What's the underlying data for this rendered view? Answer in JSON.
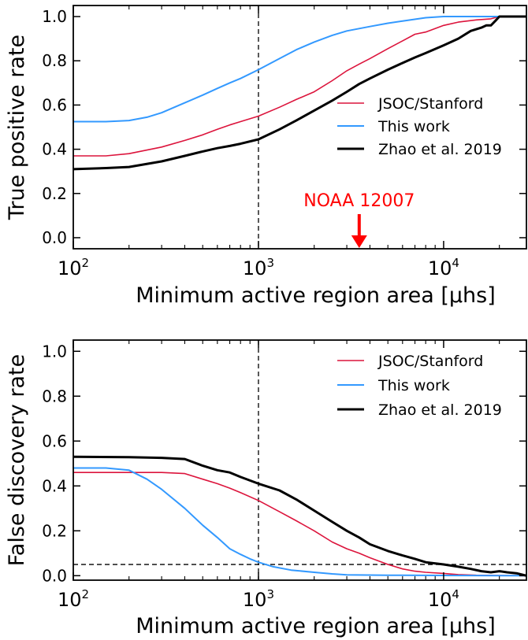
{
  "chart_data": [
    {
      "type": "line",
      "panel": "top",
      "xlabel": "Minimum active region area [μhs]",
      "ylabel": "True positive rate",
      "xscale": "log",
      "xlim": [
        100,
        28000
      ],
      "ylim": [
        -0.05,
        1.05
      ],
      "xticks": [
        100,
        1000,
        10000
      ],
      "xtick_labels": [
        {
          "base": "10",
          "exp": "2"
        },
        {
          "base": "10",
          "exp": "3"
        },
        {
          "base": "10",
          "exp": "4"
        }
      ],
      "yticks": [
        0.0,
        0.2,
        0.4,
        0.6,
        0.8,
        1.0
      ],
      "ytick_labels": [
        "0.0",
        "0.2",
        "0.4",
        "0.6",
        "0.8",
        "1.0"
      ],
      "grid": false,
      "legend_position": "right",
      "vline_x": 1000,
      "annotation": {
        "text": "NOAA 12007",
        "x": 3500,
        "color": "#ff0000"
      },
      "series": [
        {
          "name": "JSOC/Stanford",
          "color": "#dc143c",
          "linewidth": 1.6,
          "points": [
            [
              100,
              0.37
            ],
            [
              150,
              0.37
            ],
            [
              200,
              0.38
            ],
            [
              300,
              0.41
            ],
            [
              400,
              0.44
            ],
            [
              500,
              0.465
            ],
            [
              600,
              0.49
            ],
            [
              700,
              0.51
            ],
            [
              800,
              0.525
            ],
            [
              1000,
              0.55
            ],
            [
              1300,
              0.59
            ],
            [
              1600,
              0.625
            ],
            [
              2000,
              0.66
            ],
            [
              2500,
              0.71
            ],
            [
              3000,
              0.755
            ],
            [
              3500,
              0.785
            ],
            [
              4000,
              0.81
            ],
            [
              5000,
              0.855
            ],
            [
              6000,
              0.89
            ],
            [
              7000,
              0.92
            ],
            [
              8000,
              0.93
            ],
            [
              10000,
              0.96
            ],
            [
              12000,
              0.975
            ],
            [
              15000,
              0.985
            ],
            [
              18000,
              0.99
            ],
            [
              20000,
              1.0
            ],
            [
              28000,
              1.0
            ]
          ]
        },
        {
          "name": "This work",
          "color": "#3399ff",
          "linewidth": 2.0,
          "points": [
            [
              100,
              0.525
            ],
            [
              150,
              0.525
            ],
            [
              200,
              0.53
            ],
            [
              250,
              0.545
            ],
            [
              300,
              0.565
            ],
            [
              400,
              0.61
            ],
            [
              500,
              0.645
            ],
            [
              600,
              0.675
            ],
            [
              700,
              0.7
            ],
            [
              800,
              0.72
            ],
            [
              1000,
              0.76
            ],
            [
              1300,
              0.81
            ],
            [
              1600,
              0.85
            ],
            [
              2000,
              0.885
            ],
            [
              2500,
              0.915
            ],
            [
              3000,
              0.935
            ],
            [
              4000,
              0.955
            ],
            [
              5000,
              0.97
            ],
            [
              6000,
              0.98
            ],
            [
              8000,
              0.995
            ],
            [
              10000,
              1.0
            ],
            [
              28000,
              1.0
            ]
          ]
        },
        {
          "name": "Zhao et al. 2019",
          "color": "#000000",
          "linewidth": 3.0,
          "points": [
            [
              100,
              0.31
            ],
            [
              150,
              0.315
            ],
            [
              200,
              0.32
            ],
            [
              300,
              0.345
            ],
            [
              400,
              0.37
            ],
            [
              500,
              0.39
            ],
            [
              600,
              0.405
            ],
            [
              700,
              0.415
            ],
            [
              800,
              0.425
            ],
            [
              1000,
              0.445
            ],
            [
              1300,
              0.49
            ],
            [
              1600,
              0.53
            ],
            [
              2000,
              0.575
            ],
            [
              2500,
              0.62
            ],
            [
              3000,
              0.66
            ],
            [
              3500,
              0.695
            ],
            [
              4000,
              0.72
            ],
            [
              5000,
              0.76
            ],
            [
              6000,
              0.79
            ],
            [
              7000,
              0.815
            ],
            [
              8000,
              0.835
            ],
            [
              10000,
              0.87
            ],
            [
              12000,
              0.9
            ],
            [
              14000,
              0.935
            ],
            [
              16000,
              0.95
            ],
            [
              17000,
              0.96
            ],
            [
              18000,
              0.96
            ],
            [
              19000,
              0.98
            ],
            [
              20000,
              1.0
            ],
            [
              28000,
              1.0
            ]
          ]
        }
      ]
    },
    {
      "type": "line",
      "panel": "bottom",
      "xlabel": "Minimum active region area [μhs]",
      "ylabel": "False discovery rate",
      "xscale": "log",
      "xlim": [
        100,
        28000
      ],
      "ylim": [
        -0.02,
        1.05
      ],
      "xticks": [
        100,
        1000,
        10000
      ],
      "xtick_labels": [
        {
          "base": "10",
          "exp": "2"
        },
        {
          "base": "10",
          "exp": "3"
        },
        {
          "base": "10",
          "exp": "4"
        }
      ],
      "yticks": [
        0.0,
        0.2,
        0.4,
        0.6,
        0.8,
        1.0
      ],
      "ytick_labels": [
        "0.0",
        "0.2",
        "0.4",
        "0.6",
        "0.8",
        "1.0"
      ],
      "grid": false,
      "legend_position": "top-right",
      "vline_x": 1000,
      "hline_y": 0.05,
      "series": [
        {
          "name": "JSOC/Stanford",
          "color": "#dc143c",
          "linewidth": 1.6,
          "points": [
            [
              100,
              0.46
            ],
            [
              200,
              0.46
            ],
            [
              300,
              0.46
            ],
            [
              400,
              0.455
            ],
            [
              500,
              0.43
            ],
            [
              600,
              0.41
            ],
            [
              700,
              0.39
            ],
            [
              800,
              0.37
            ],
            [
              1000,
              0.335
            ],
            [
              1300,
              0.285
            ],
            [
              1600,
              0.245
            ],
            [
              2000,
              0.2
            ],
            [
              2500,
              0.15
            ],
            [
              3000,
              0.12
            ],
            [
              3500,
              0.1
            ],
            [
              4000,
              0.08
            ],
            [
              5000,
              0.05
            ],
            [
              6000,
              0.03
            ],
            [
              7000,
              0.02
            ],
            [
              8000,
              0.015
            ],
            [
              10000,
              0.01
            ],
            [
              12000,
              0.005
            ],
            [
              15000,
              0.002
            ],
            [
              28000,
              0.0
            ]
          ]
        },
        {
          "name": "This work",
          "color": "#3399ff",
          "linewidth": 2.0,
          "points": [
            [
              100,
              0.48
            ],
            [
              150,
              0.48
            ],
            [
              200,
              0.47
            ],
            [
              250,
              0.43
            ],
            [
              300,
              0.385
            ],
            [
              400,
              0.3
            ],
            [
              500,
              0.225
            ],
            [
              600,
              0.17
            ],
            [
              700,
              0.12
            ],
            [
              800,
              0.095
            ],
            [
              900,
              0.075
            ],
            [
              1000,
              0.06
            ],
            [
              1200,
              0.04
            ],
            [
              1500,
              0.025
            ],
            [
              2000,
              0.015
            ],
            [
              2500,
              0.008
            ],
            [
              3000,
              0.004
            ],
            [
              5000,
              0.002
            ],
            [
              10000,
              0.001
            ],
            [
              28000,
              0.0
            ]
          ]
        },
        {
          "name": "Zhao et al. 2019",
          "color": "#000000",
          "linewidth": 3.0,
          "points": [
            [
              100,
              0.53
            ],
            [
              200,
              0.528
            ],
            [
              300,
              0.525
            ],
            [
              400,
              0.52
            ],
            [
              500,
              0.49
            ],
            [
              600,
              0.47
            ],
            [
              700,
              0.46
            ],
            [
              800,
              0.44
            ],
            [
              1000,
              0.41
            ],
            [
              1300,
              0.38
            ],
            [
              1600,
              0.34
            ],
            [
              2000,
              0.29
            ],
            [
              2500,
              0.24
            ],
            [
              3000,
              0.2
            ],
            [
              3500,
              0.17
            ],
            [
              4000,
              0.14
            ],
            [
              5000,
              0.11
            ],
            [
              6000,
              0.09
            ],
            [
              7000,
              0.075
            ],
            [
              8000,
              0.06
            ],
            [
              10000,
              0.05
            ],
            [
              12000,
              0.04
            ],
            [
              14000,
              0.03
            ],
            [
              16000,
              0.02
            ],
            [
              18000,
              0.015
            ],
            [
              20000,
              0.02
            ],
            [
              22000,
              0.015
            ],
            [
              25000,
              0.01
            ],
            [
              28000,
              0.0
            ]
          ]
        }
      ]
    }
  ]
}
